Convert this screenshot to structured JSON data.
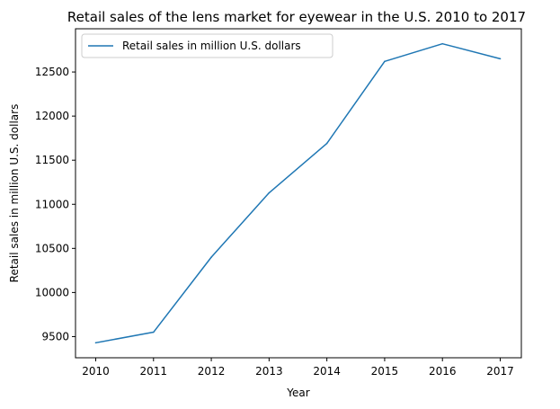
{
  "chart_data": {
    "type": "line",
    "title": "Retail sales of the lens market for eyewear in the U.S. 2010 to 2017",
    "xlabel": "Year",
    "ylabel": "Retail sales in million U.S. dollars",
    "categories": [
      "2010",
      "2011",
      "2012",
      "2013",
      "2014",
      "2015",
      "2016",
      "2017"
    ],
    "series": [
      {
        "name": "Retail sales in million U.S. dollars",
        "color": "#1f77b4",
        "values": [
          9430,
          9550,
          10400,
          11130,
          11690,
          12620,
          12820,
          12650
        ]
      }
    ],
    "yticks": [
      9500,
      10000,
      10500,
      11000,
      11500,
      12000,
      12500
    ],
    "ylim": [
      9260,
      12990
    ],
    "grid": false,
    "legend_position": "top-left"
  }
}
